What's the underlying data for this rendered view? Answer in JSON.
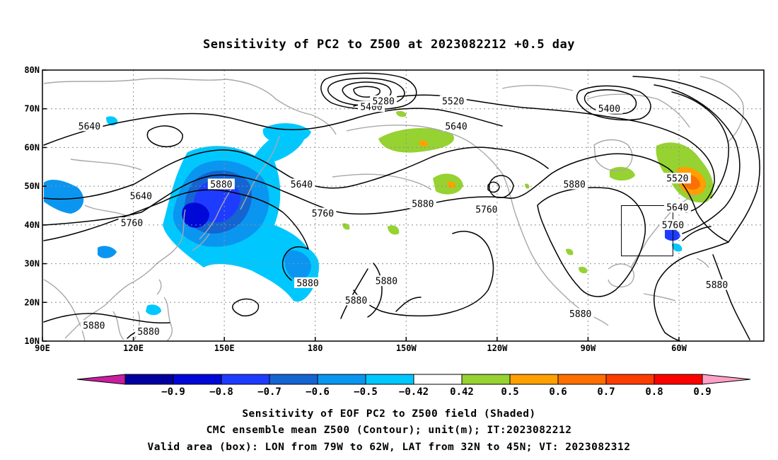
{
  "figure": {
    "title": "Sensitivity of PC2 to Z500 at 2023082212 +0.5 day",
    "caption_lines": [
      "Sensitivity of EOF PC2 to Z500 field (Shaded)",
      "CMC ensemble mean Z500 (Contour); unit(m); IT:2023082212",
      "Valid area (box): LON from 79W to 62W, LAT from 32N to 45N; VT: 2023082312"
    ]
  },
  "map": {
    "lon_range_deg_east": [
      90,
      328
    ],
    "lat_range": [
      10,
      80
    ],
    "x_ticks": [
      {
        "lon": 90,
        "label": "90E"
      },
      {
        "lon": 120,
        "label": "120E"
      },
      {
        "lon": 150,
        "label": "150E"
      },
      {
        "lon": 180,
        "label": "180"
      },
      {
        "lon": 210,
        "label": "150W"
      },
      {
        "lon": 240,
        "label": "120W"
      },
      {
        "lon": 270,
        "label": "90W"
      },
      {
        "lon": 300,
        "label": "60W"
      }
    ],
    "y_ticks": [
      {
        "lat": 80,
        "label": "80N"
      },
      {
        "lat": 70,
        "label": "70N"
      },
      {
        "lat": 60,
        "label": "60N"
      },
      {
        "lat": 50,
        "label": "50N"
      },
      {
        "lat": 40,
        "label": "40N"
      },
      {
        "lat": 30,
        "label": "30N"
      },
      {
        "lat": 20,
        "label": "20N"
      },
      {
        "lat": 10,
        "label": "10N"
      }
    ],
    "grid": "dotted",
    "colors": {
      "coastline": "#a8a8a8",
      "contour": "#000000",
      "grid": "#909090",
      "frame": "#000000"
    },
    "valid_box": {
      "lon_min": 281,
      "lon_max": 298,
      "lat_min": 32,
      "lat_max": 45
    }
  },
  "contour_labels": [
    {
      "text": "5640",
      "lon": 105.5,
      "lat": 65.5
    },
    {
      "text": "5640",
      "lon": 122.5,
      "lat": 47.5
    },
    {
      "text": "5760",
      "lon": 119.5,
      "lat": 40.5
    },
    {
      "text": "5880",
      "lon": 149.0,
      "lat": 50.5
    },
    {
      "text": "5640",
      "lon": 175.5,
      "lat": 50.5
    },
    {
      "text": "5760",
      "lon": 182.5,
      "lat": 43.0
    },
    {
      "text": "5880",
      "lon": 177.5,
      "lat": 25.0
    },
    {
      "text": "5880",
      "lon": 193.5,
      "lat": 20.5
    },
    {
      "text": "5880",
      "lon": 203.5,
      "lat": 25.5
    },
    {
      "text": "5880",
      "lon": 215.5,
      "lat": 45.5
    },
    {
      "text": "5760",
      "lon": 236.5,
      "lat": 44.0
    },
    {
      "text": "5880",
      "lon": 265.5,
      "lat": 50.5
    },
    {
      "text": "5400",
      "lon": 198.5,
      "lat": 70.5
    },
    {
      "text": "5280",
      "lon": 202.5,
      "lat": 72.0
    },
    {
      "text": "5520",
      "lon": 225.5,
      "lat": 72.0
    },
    {
      "text": "5640",
      "lon": 226.5,
      "lat": 65.5
    },
    {
      "text": "5400",
      "lon": 277.0,
      "lat": 70.0
    },
    {
      "text": "5520",
      "lon": 299.5,
      "lat": 52.0
    },
    {
      "text": "5640",
      "lon": 299.5,
      "lat": 44.5
    },
    {
      "text": "5760",
      "lon": 298.0,
      "lat": 40.0
    },
    {
      "text": "5880",
      "lon": 312.5,
      "lat": 24.5
    },
    {
      "text": "5880",
      "lon": 267.5,
      "lat": 17.0
    },
    {
      "text": "5880",
      "lon": 107.0,
      "lat": 14.0
    },
    {
      "text": "5880",
      "lon": 125.0,
      "lat": 12.5
    }
  ],
  "colorbar": {
    "segments": [
      "#0000a0",
      "#0008d8",
      "#1e3cff",
      "#1464d2",
      "#0a96f0",
      "#00c8ff",
      "#ffffff",
      "#96d232",
      "#ffa000",
      "#ff6e00",
      "#ff3c00",
      "#ff0000"
    ],
    "low_extend_color": "#c81ea0",
    "high_extend_color": "#ffa0c8",
    "labels": [
      "−0.9",
      "−0.8",
      "−0.7",
      "−0.6",
      "−0.5",
      "−0.42",
      "0.42",
      "0.5",
      "0.6",
      "0.7",
      "0.8",
      "0.9"
    ]
  }
}
